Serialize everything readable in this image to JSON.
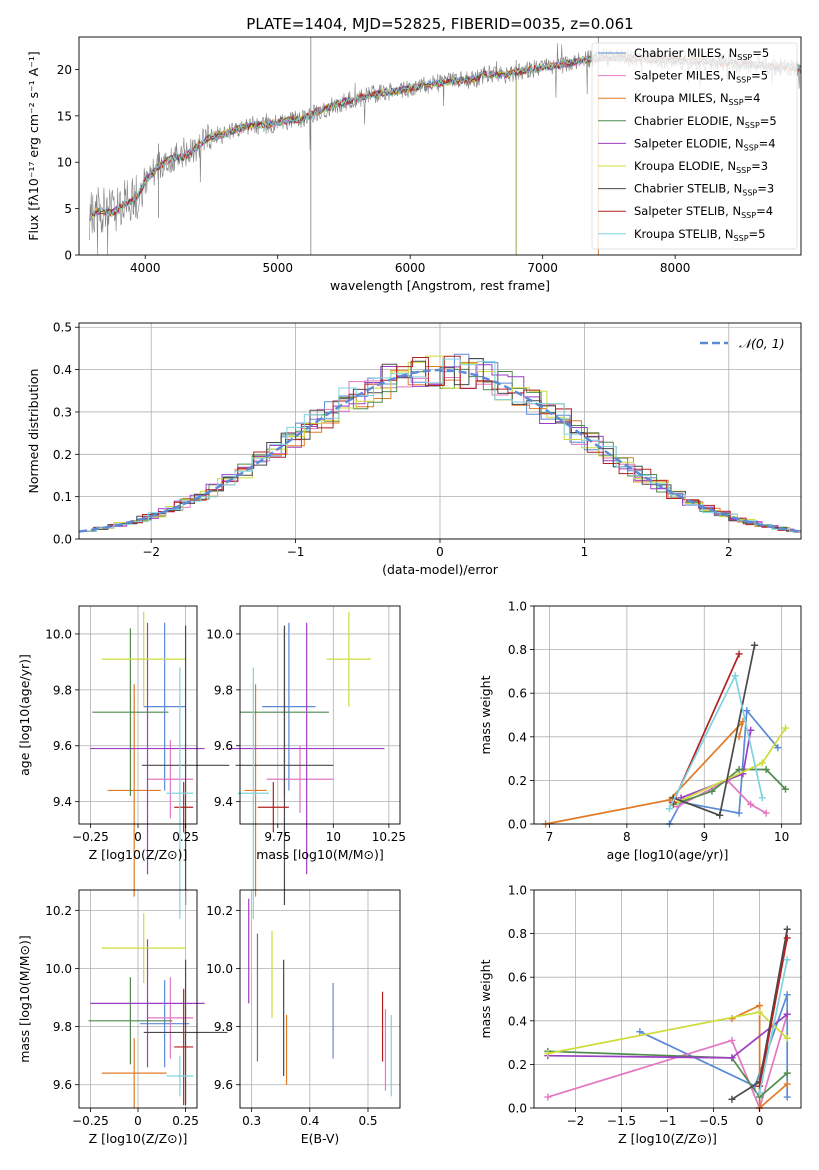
{
  "figure_title": "PLATE=1404, MJD=52825, FIBERID=0035, z=0.061",
  "colors": {
    "spectrum": "#808080",
    "gaussian": "#5b8bd6",
    "models": [
      "#5b8bd6",
      "#e377c2",
      "#e07b28",
      "#4f8a4f",
      "#9b3fc4",
      "#cddc39",
      "#4a4a4a",
      "#b22222",
      "#7fd3e0"
    ]
  },
  "chart_data": [
    {
      "id": "spectrum",
      "type": "line",
      "title": "PLATE=1404, MJD=52825, FIBERID=0035, z=0.061",
      "xlabel": "wavelength [Angstrom, rest frame]",
      "ylabel": "Flux [fλ10⁻¹⁷ erg cm⁻² s⁻¹ A⁻¹]",
      "xlim": [
        3500,
        8950
      ],
      "ylim": [
        0,
        23.5
      ],
      "xticks": [
        4000,
        5000,
        6000,
        7000,
        8000
      ],
      "yticks": [
        0,
        5,
        10,
        15,
        20
      ],
      "grid": false,
      "legend_position": "top-right",
      "legend": [
        {
          "label": "Chabrier MILES, N",
          "sub": "SSP",
          "tail": "=5"
        },
        {
          "label": "Salpeter MILES, N",
          "sub": "SSP",
          "tail": "=5"
        },
        {
          "label": "Kroupa MILES, N",
          "sub": "SSP",
          "tail": "=4"
        },
        {
          "label": "Chabrier ELODIE, N",
          "sub": "SSP",
          "tail": "=5"
        },
        {
          "label": "Salpeter ELODIE, N",
          "sub": "SSP",
          "tail": "=4"
        },
        {
          "label": "Kroupa ELODIE, N",
          "sub": "SSP",
          "tail": "=3"
        },
        {
          "label": "Chabrier STELIB, N",
          "sub": "SSP",
          "tail": "=3"
        },
        {
          "label": "Salpeter STELIB, N",
          "sub": "SSP",
          "tail": "=4"
        },
        {
          "label": "Kroupa STELIB, N",
          "sub": "SSP",
          "tail": "=5"
        }
      ],
      "continuum": [
        [
          3580,
          4.2
        ],
        [
          3650,
          4.8
        ],
        [
          3750,
          4.5
        ],
        [
          3850,
          5.6
        ],
        [
          3930,
          6.0
        ],
        [
          4000,
          8.0
        ],
        [
          4100,
          9.5
        ],
        [
          4200,
          10.5
        ],
        [
          4300,
          10.6
        ],
        [
          4400,
          11.8
        ],
        [
          4500,
          12.8
        ],
        [
          4600,
          13.0
        ],
        [
          4700,
          13.6
        ],
        [
          4800,
          14.0
        ],
        [
          4900,
          13.9
        ],
        [
          5000,
          14.3
        ],
        [
          5100,
          14.6
        ],
        [
          5175,
          14.5
        ],
        [
          5300,
          15.5
        ],
        [
          5500,
          16.5
        ],
        [
          5700,
          17.3
        ],
        [
          5900,
          17.7
        ],
        [
          6100,
          18.3
        ],
        [
          6300,
          18.7
        ],
        [
          6500,
          19.0
        ],
        [
          6563,
          19.5
        ],
        [
          6700,
          19.4
        ],
        [
          6900,
          20.0
        ],
        [
          7100,
          20.4
        ],
        [
          7300,
          21.0
        ],
        [
          7450,
          21.3
        ],
        [
          7700,
          21.2
        ],
        [
          8000,
          21.0
        ],
        [
          8300,
          20.8
        ],
        [
          8700,
          20.4
        ],
        [
          8900,
          20.2
        ]
      ]
    },
    {
      "id": "residuals",
      "type": "histogram",
      "xlabel": "(data-model)/error",
      "ylabel": "Normed distribution",
      "xlim": [
        -2.5,
        2.5
      ],
      "ylim": [
        0,
        0.51
      ],
      "xticks": [
        -2,
        -1,
        0,
        1,
        2
      ],
      "yticks": [
        0.0,
        0.1,
        0.2,
        0.3,
        0.4,
        0.5
      ],
      "grid": true,
      "legend_position": "top-right",
      "legend_label": "𝒩(0, 1)"
    },
    {
      "id": "age-vs-Z",
      "type": "errorbar",
      "xlabel": "Z [log10(Z/Z⊙)]",
      "ylabel": "age  [log10(age/yr)]",
      "xlim": [
        -0.31,
        0.31
      ],
      "ylim": [
        9.32,
        10.1
      ],
      "xticks": [
        -0.25,
        0.0,
        0.25
      ],
      "yticks": [
        9.4,
        9.6,
        9.8,
        10.0
      ],
      "points": [
        {
          "x": 0.14,
          "y": 9.74,
          "xerr": 0.11,
          "yerr": 0.3
        },
        {
          "x": 0.17,
          "y": 9.48,
          "xerr": 0.12,
          "yerr": 0.14
        },
        {
          "x": -0.02,
          "y": 9.44,
          "xerr": 0.14,
          "yerr": 0.38
        },
        {
          "x": -0.04,
          "y": 9.72,
          "xerr": 0.2,
          "yerr": 0.3
        },
        {
          "x": 0.05,
          "y": 9.59,
          "xerr": 0.3,
          "yerr": 0.45
        },
        {
          "x": 0.03,
          "y": 9.91,
          "xerr": 0.22,
          "yerr": 0.17
        },
        {
          "x": 0.25,
          "y": 9.53,
          "xerr": 0.23,
          "yerr": 0.5
        },
        {
          "x": 0.24,
          "y": 9.38,
          "xerr": 0.05,
          "yerr": 0.09
        },
        {
          "x": 0.22,
          "y": 9.43,
          "xerr": 0.07,
          "yerr": 0.45
        }
      ]
    },
    {
      "id": "age-vs-mass",
      "type": "errorbar",
      "xlabel": "mass [log10(M/M⊙)]",
      "xlim": [
        9.58,
        10.3
      ],
      "ylim": [
        9.32,
        10.1
      ],
      "xticks": [
        9.75,
        10.0,
        10.25
      ],
      "yticks": [
        9.4,
        9.6,
        9.8,
        10.0
      ],
      "points": [
        {
          "x": 9.8,
          "y": 9.74,
          "xerr": 0.12,
          "yerr": 0.3
        },
        {
          "x": 9.85,
          "y": 9.48,
          "xerr": 0.15,
          "yerr": 0.12
        },
        {
          "x": 9.65,
          "y": 9.44,
          "xerr": 0.05,
          "yerr": 0.38
        },
        {
          "x": 9.78,
          "y": 9.72,
          "xerr": 0.2,
          "yerr": 0.3
        },
        {
          "x": 9.88,
          "y": 9.59,
          "xerr": 0.35,
          "yerr": 0.45
        },
        {
          "x": 10.07,
          "y": 9.91,
          "xerr": 0.1,
          "yerr": 0.17
        },
        {
          "x": 9.78,
          "y": 9.53,
          "xerr": 0.22,
          "yerr": 0.5
        },
        {
          "x": 9.73,
          "y": 9.38,
          "xerr": 0.07,
          "yerr": 0.09
        },
        {
          "x": 9.64,
          "y": 9.43,
          "xerr": 0.07,
          "yerr": 0.45
        }
      ]
    },
    {
      "id": "weight-vs-age",
      "type": "line",
      "xlabel": "age  [log10(age/yr)]",
      "ylabel": "mass weight",
      "xlim": [
        6.8,
        10.25
      ],
      "ylim": [
        0,
        1.0
      ],
      "xticks": [
        7,
        8,
        9,
        10
      ],
      "yticks": [
        0.0,
        0.2,
        0.4,
        0.6,
        0.8,
        1.0
      ],
      "grid": true,
      "series": [
        {
          "points": [
            [
              8.55,
              0.0
            ],
            [
              8.7,
              0.1
            ],
            [
              9.45,
              0.05
            ],
            [
              9.55,
              0.52
            ],
            [
              9.95,
              0.35
            ]
          ]
        },
        {
          "points": [
            [
              8.65,
              0.08
            ],
            [
              9.3,
              0.2
            ],
            [
              9.6,
              0.09
            ],
            [
              9.8,
              0.05
            ]
          ]
        },
        {
          "points": [
            [
              6.95,
              0.0
            ],
            [
              8.55,
              0.11
            ],
            [
              9.5,
              0.47
            ],
            [
              9.45,
              0.4
            ]
          ]
        },
        {
          "points": [
            [
              8.6,
              0.09
            ],
            [
              9.1,
              0.15
            ],
            [
              9.45,
              0.25
            ],
            [
              9.8,
              0.25
            ],
            [
              10.05,
              0.16
            ]
          ]
        },
        {
          "points": [
            [
              8.7,
              0.12
            ],
            [
              9.5,
              0.23
            ],
            [
              9.6,
              0.43
            ]
          ]
        },
        {
          "points": [
            [
              8.65,
              0.1
            ],
            [
              9.75,
              0.28
            ],
            [
              10.05,
              0.44
            ]
          ]
        },
        {
          "points": [
            [
              8.6,
              0.12
            ],
            [
              9.2,
              0.04
            ],
            [
              9.65,
              0.82
            ]
          ]
        },
        {
          "points": [
            [
              8.6,
              0.1
            ],
            [
              9.45,
              0.78
            ]
          ]
        },
        {
          "points": [
            [
              8.55,
              0.07
            ],
            [
              9.4,
              0.68
            ],
            [
              9.75,
              0.12
            ]
          ]
        }
      ]
    },
    {
      "id": "mass-vs-Z",
      "type": "errorbar",
      "xlabel": "Z [log10(Z/Z⊙)]",
      "ylabel": "mass [log10(M/M⊙)]",
      "xlim": [
        -0.31,
        0.31
      ],
      "ylim": [
        9.52,
        10.27
      ],
      "xticks": [
        -0.25,
        0.0,
        0.25
      ],
      "yticks": [
        9.6,
        9.8,
        10.0,
        10.2
      ],
      "points": [
        {
          "x": 0.14,
          "y": 9.81,
          "xerr": 0.13,
          "yerr": 0.15
        },
        {
          "x": 0.17,
          "y": 9.83,
          "xerr": 0.12,
          "yerr": 0.14
        },
        {
          "x": -0.02,
          "y": 9.64,
          "xerr": 0.17,
          "yerr": 0.12
        },
        {
          "x": -0.04,
          "y": 9.82,
          "xerr": 0.22,
          "yerr": 0.15
        },
        {
          "x": 0.05,
          "y": 9.88,
          "xerr": 0.3,
          "yerr": 0.22
        },
        {
          "x": 0.03,
          "y": 10.07,
          "xerr": 0.22,
          "yerr": 0.12
        },
        {
          "x": 0.25,
          "y": 9.78,
          "xerr": 0.22,
          "yerr": 0.25
        },
        {
          "x": 0.24,
          "y": 9.73,
          "xerr": 0.05,
          "yerr": 0.2
        },
        {
          "x": 0.22,
          "y": 9.63,
          "xerr": 0.07,
          "yerr": 0.07
        }
      ]
    },
    {
      "id": "mass-vs-EBV",
      "type": "errorbar",
      "xlabel": "E(B-V)",
      "xlim": [
        0.28,
        0.555
      ],
      "ylim": [
        9.52,
        10.27
      ],
      "xticks": [
        0.3,
        0.4,
        0.5
      ],
      "yticks": [
        9.6,
        9.8,
        10.0,
        10.2
      ],
      "points": [
        {
          "x": 0.44,
          "y": 9.82,
          "xerr": 0,
          "yerr": 0.13
        },
        {
          "x": 0.53,
          "y": 9.72,
          "xerr": 0,
          "yerr": 0.14
        },
        {
          "x": 0.36,
          "y": 9.72,
          "xerr": 0,
          "yerr": 0.12
        },
        {
          "x": 0.31,
          "y": 9.9,
          "xerr": 0,
          "yerr": 0.22
        },
        {
          "x": 0.295,
          "y": 10.06,
          "xerr": 0,
          "yerr": 0.18
        },
        {
          "x": 0.335,
          "y": 9.98,
          "xerr": 0,
          "yerr": 0.15
        },
        {
          "x": 0.355,
          "y": 9.83,
          "xerr": 0,
          "yerr": 0.2
        },
        {
          "x": 0.525,
          "y": 9.8,
          "xerr": 0,
          "yerr": 0.12
        },
        {
          "x": 0.54,
          "y": 9.7,
          "xerr": 0,
          "yerr": 0.14
        }
      ]
    },
    {
      "id": "weight-vs-Z",
      "type": "line",
      "xlabel": "Z [log10(Z/Z⊙)]",
      "ylabel": "mass weight",
      "xlim": [
        -2.45,
        0.45
      ],
      "ylim": [
        0,
        1.0
      ],
      "xticks": [
        -2.0,
        -1.5,
        -1.0,
        -0.5,
        0.0
      ],
      "yticks": [
        0.0,
        0.2,
        0.4,
        0.6,
        0.8,
        1.0
      ],
      "grid": true,
      "series": [
        {
          "points": [
            [
              -1.3,
              0.35
            ],
            [
              -0.05,
              0.1
            ],
            [
              0.3,
              0.52
            ],
            [
              0.3,
              0.05
            ]
          ]
        },
        {
          "points": [
            [
              -2.3,
              0.05
            ],
            [
              -0.3,
              0.31
            ],
            [
              0.0,
              0.0
            ],
            [
              0.3,
              0.43
            ]
          ]
        },
        {
          "points": [
            [
              -0.3,
              0.41
            ],
            [
              0.0,
              0.47
            ],
            [
              0.0,
              0.0
            ],
            [
              0.3,
              0.11
            ]
          ]
        },
        {
          "points": [
            [
              -2.3,
              0.26
            ],
            [
              -0.3,
              0.23
            ],
            [
              0.0,
              0.05
            ],
            [
              0.3,
              0.16
            ]
          ]
        },
        {
          "points": [
            [
              -2.3,
              0.24
            ],
            [
              -0.3,
              0.23
            ],
            [
              0.3,
              0.43
            ]
          ]
        },
        {
          "points": [
            [
              -2.3,
              0.25
            ],
            [
              0.0,
              0.44
            ],
            [
              0.3,
              0.32
            ]
          ]
        },
        {
          "points": [
            [
              -0.3,
              0.04
            ],
            [
              0.0,
              0.12
            ],
            [
              0.3,
              0.82
            ]
          ]
        },
        {
          "points": [
            [
              0.0,
              0.1
            ],
            [
              0.3,
              0.78
            ]
          ]
        },
        {
          "points": [
            [
              0.0,
              0.07
            ],
            [
              0.3,
              0.68
            ]
          ]
        }
      ]
    }
  ]
}
